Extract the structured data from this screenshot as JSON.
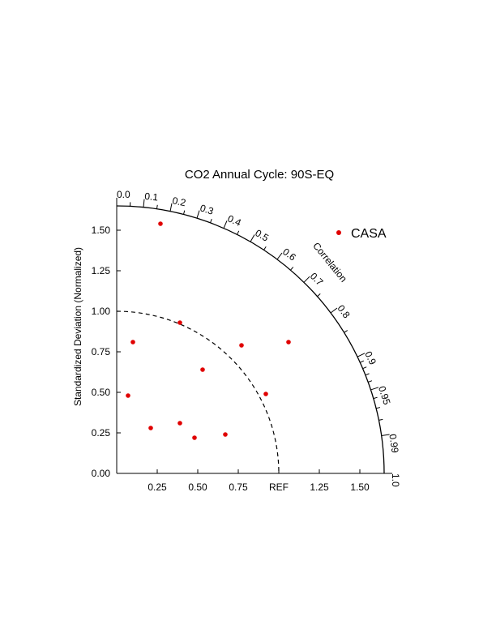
{
  "chart_data": {
    "type": "scatter",
    "subtype": "taylor-diagram",
    "title": "CO2 Annual Cycle:  90S-EQ",
    "ylabel": "Standardized Deviation (Normalized)",
    "arc_label": "Correlation",
    "legend_position": "top-right",
    "max_std": 1.65,
    "ref_std": 1.0,
    "ref_label": "REF",
    "x_ticks": [
      {
        "value": 0.25,
        "label": "0.25"
      },
      {
        "value": 0.5,
        "label": "0.50"
      },
      {
        "value": 0.75,
        "label": "0.75"
      },
      {
        "value": 1.0,
        "label": "REF"
      },
      {
        "value": 1.25,
        "label": "1.25"
      },
      {
        "value": 1.5,
        "label": "1.50"
      }
    ],
    "y_ticks": [
      {
        "value": 0.0,
        "label": "0.00"
      },
      {
        "value": 0.25,
        "label": "0.25"
      },
      {
        "value": 0.5,
        "label": "0.50"
      },
      {
        "value": 0.75,
        "label": "0.75"
      },
      {
        "value": 1.0,
        "label": "1.00"
      },
      {
        "value": 1.25,
        "label": "1.25"
      },
      {
        "value": 1.5,
        "label": "1.50"
      }
    ],
    "correlation_ticks": [
      {
        "value": 0.0,
        "label": "0.0"
      },
      {
        "value": 0.1,
        "label": "0.1"
      },
      {
        "value": 0.2,
        "label": "0.2"
      },
      {
        "value": 0.3,
        "label": "0.3"
      },
      {
        "value": 0.4,
        "label": "0.4"
      },
      {
        "value": 0.5,
        "label": "0.5"
      },
      {
        "value": 0.6,
        "label": "0.6"
      },
      {
        "value": 0.7,
        "label": "0.7"
      },
      {
        "value": 0.8,
        "label": "0.8"
      },
      {
        "value": 0.9,
        "label": "0.9"
      },
      {
        "value": 0.95,
        "label": "0.95"
      },
      {
        "value": 0.99,
        "label": "0.99"
      },
      {
        "value": 1.0,
        "label": "1.0"
      }
    ],
    "series": [
      {
        "name": "CASA",
        "color": "#e00000",
        "points": [
          {
            "x": 0.27,
            "y": 1.54
          },
          {
            "x": 0.39,
            "y": 0.93
          },
          {
            "x": 0.1,
            "y": 0.81
          },
          {
            "x": 0.77,
            "y": 0.79
          },
          {
            "x": 1.06,
            "y": 0.81
          },
          {
            "x": 0.53,
            "y": 0.64
          },
          {
            "x": 0.07,
            "y": 0.48
          },
          {
            "x": 0.92,
            "y": 0.49
          },
          {
            "x": 0.21,
            "y": 0.28
          },
          {
            "x": 0.39,
            "y": 0.31
          },
          {
            "x": 0.48,
            "y": 0.22
          },
          {
            "x": 0.67,
            "y": 0.24
          }
        ]
      }
    ]
  }
}
